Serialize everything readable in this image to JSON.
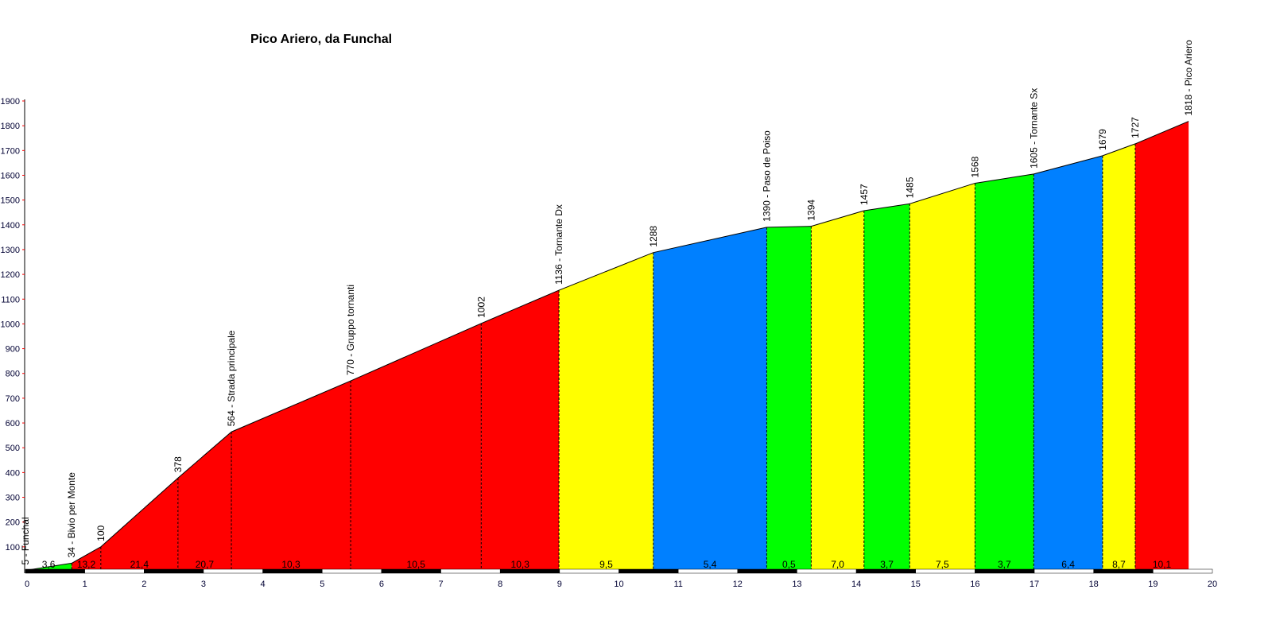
{
  "chart_data": {
    "type": "area",
    "title": "Pico Ariero, da Funchal",
    "xlabel": "",
    "ylabel": "",
    "xlim": [
      0,
      20
    ],
    "ylim": [
      0,
      1900
    ],
    "x_ticks": [
      0,
      1,
      2,
      3,
      4,
      5,
      6,
      7,
      8,
      9,
      10,
      11,
      12,
      13,
      14,
      15,
      16,
      17,
      18,
      19,
      20
    ],
    "y_ticks": [
      100,
      200,
      300,
      400,
      500,
      600,
      700,
      800,
      900,
      1000,
      1100,
      1200,
      1300,
      1400,
      1500,
      1600,
      1700,
      1800,
      1900
    ],
    "points": [
      {
        "km": 0,
        "elev": 5,
        "label": "5 - Funchal"
      },
      {
        "km": 0.78,
        "elev": 34,
        "label": "34 - Bivio per Monte"
      },
      {
        "km": 1.27,
        "elev": 100,
        "label": "100"
      },
      {
        "km": 2.57,
        "elev": 378,
        "label": "378"
      },
      {
        "km": 3.47,
        "elev": 564,
        "label": "564 - Strada principale"
      },
      {
        "km": 5.48,
        "elev": 770,
        "label": "770 - Gruppo tornanti"
      },
      {
        "km": 7.68,
        "elev": 1002,
        "label": "1002"
      },
      {
        "km": 8.99,
        "elev": 1136,
        "label": "1136 - Tornante Dx"
      },
      {
        "km": 10.58,
        "elev": 1288,
        "label": "1288"
      },
      {
        "km": 12.49,
        "elev": 1390,
        "label": "1390 - Paso de Poiso"
      },
      {
        "km": 13.24,
        "elev": 1394,
        "label": "1394"
      },
      {
        "km": 14.13,
        "elev": 1457,
        "label": "1457"
      },
      {
        "km": 14.9,
        "elev": 1485,
        "label": "1485"
      },
      {
        "km": 16.0,
        "elev": 1568,
        "label": "1568"
      },
      {
        "km": 16.99,
        "elev": 1605,
        "label": "1605 - Tornante Sx"
      },
      {
        "km": 18.15,
        "elev": 1679,
        "label": "1679"
      },
      {
        "km": 18.7,
        "elev": 1727,
        "label": "1727"
      },
      {
        "km": 19.6,
        "elev": 1818,
        "label": "1818 - Pico Ariero"
      }
    ],
    "segments": [
      {
        "gradient": "3,6",
        "color": "#00ff00"
      },
      {
        "gradient": "13,2",
        "color": "#ff0000"
      },
      {
        "gradient": "21,4",
        "color": "#ff0000"
      },
      {
        "gradient": "20,7",
        "color": "#ff0000"
      },
      {
        "gradient": "10,3",
        "color": "#ff0000"
      },
      {
        "gradient": "10,5",
        "color": "#ff0000"
      },
      {
        "gradient": "10,3",
        "color": "#ff0000"
      },
      {
        "gradient": "9,5",
        "color": "#ffff00"
      },
      {
        "gradient": "5,4",
        "color": "#0080ff"
      },
      {
        "gradient": "0,5",
        "color": "#00ff00"
      },
      {
        "gradient": "7,0",
        "color": "#ffff00"
      },
      {
        "gradient": "3,7",
        "color": "#00ff00"
      },
      {
        "gradient": "7,5",
        "color": "#ffff00"
      },
      {
        "gradient": "3,7",
        "color": "#00ff00"
      },
      {
        "gradient": "6,4",
        "color": "#0080ff"
      },
      {
        "gradient": "8,7",
        "color": "#ffff00"
      },
      {
        "gradient": "10,1",
        "color": "#ff0000"
      }
    ],
    "grid": false,
    "legend": "none"
  }
}
